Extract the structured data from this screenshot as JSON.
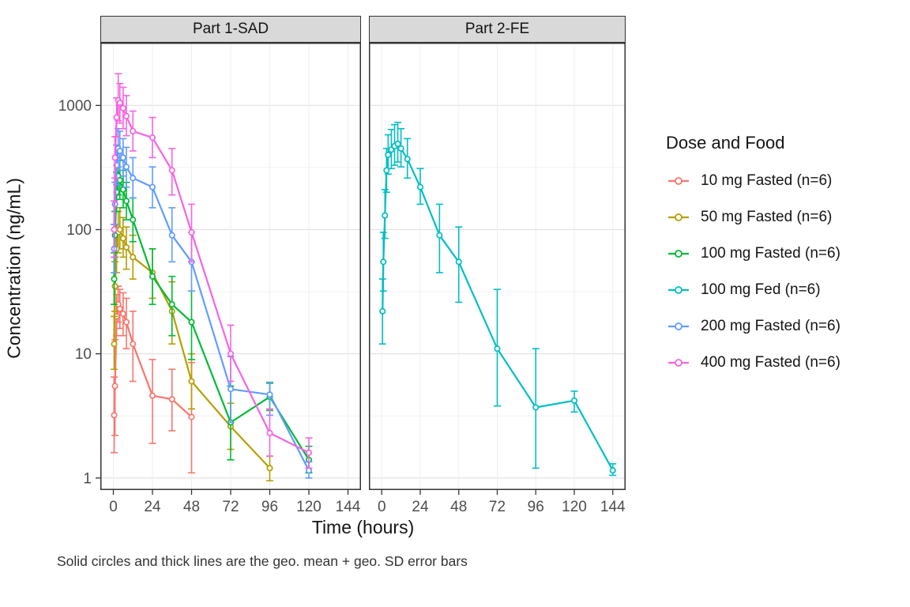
{
  "chart_data": {
    "type": "line",
    "y_scale": "log10",
    "grid": true,
    "legend_position": "right",
    "xlabel": "Time (hours)",
    "ylabel": "Concentration (ng/mL)",
    "legend_title": "Dose and Food",
    "caption": "Solid circles and thick lines are the geo. mean + geo. SD error bars",
    "x_ticks": [
      0,
      24,
      48,
      72,
      96,
      120,
      144
    ],
    "y_ticks": [
      1,
      10,
      100,
      1000
    ],
    "xlim": [
      -8,
      152
    ],
    "ylim": [
      0.8,
      3200
    ],
    "facets": [
      {
        "title": "Part 1-SAD",
        "show_y_axis": true
      },
      {
        "title": "Part 2-FE",
        "show_y_axis": false
      }
    ],
    "point_format": [
      "time_h",
      "geo_mean",
      "geo_sd_low",
      "geo_sd_high"
    ],
    "series": [
      {
        "name": "10 mg Fasted (n=6)",
        "color": "#F8766D",
        "facet": "Part 1-SAD",
        "points": [
          [
            0.5,
            3.2,
            1.6,
            6.5
          ],
          [
            1,
            5.5,
            2.2,
            13
          ],
          [
            2,
            20,
            14,
            30
          ],
          [
            3,
            25,
            18,
            35
          ],
          [
            4,
            23,
            16,
            33
          ],
          [
            6,
            21,
            14,
            31
          ],
          [
            8,
            18,
            11,
            28
          ],
          [
            12,
            12,
            6,
            22
          ],
          [
            24,
            4.6,
            1.9,
            9
          ],
          [
            36,
            4.3,
            2.4,
            7.5
          ],
          [
            48,
            3.1,
            1.1,
            8.5
          ]
        ]
      },
      {
        "name": "50 mg Fasted (n=6)",
        "color": "#B79F00",
        "facet": "Part 1-SAD",
        "points": [
          [
            0.5,
            12,
            7.5,
            20
          ],
          [
            1,
            35,
            22,
            55
          ],
          [
            2,
            70,
            45,
            110
          ],
          [
            3,
            95,
            65,
            140
          ],
          [
            4,
            100,
            70,
            150
          ],
          [
            6,
            85,
            60,
            125
          ],
          [
            8,
            72,
            48,
            105
          ],
          [
            12,
            60,
            40,
            90
          ],
          [
            24,
            45,
            28,
            70
          ],
          [
            36,
            22,
            12,
            38
          ],
          [
            48,
            6,
            3.6,
            10
          ],
          [
            72,
            2.6,
            1.7,
            4
          ],
          [
            96,
            1.2,
            0.95,
            1.5
          ]
        ]
      },
      {
        "name": "100 mg Fasted (n=6)",
        "color": "#00BA38",
        "facet": "Part 1-SAD",
        "points": [
          [
            0.5,
            40,
            25,
            65
          ],
          [
            1,
            90,
            60,
            140
          ],
          [
            2,
            200,
            140,
            290
          ],
          [
            3,
            270,
            190,
            380
          ],
          [
            4,
            250,
            175,
            360
          ],
          [
            6,
            210,
            150,
            300
          ],
          [
            8,
            170,
            120,
            240
          ],
          [
            12,
            120,
            80,
            180
          ],
          [
            24,
            42,
            25,
            70
          ],
          [
            36,
            25,
            14,
            42
          ],
          [
            48,
            18,
            9,
            32
          ],
          [
            72,
            2.8,
            1.4,
            5.5
          ],
          [
            96,
            4.5,
            3.5,
            5.8
          ],
          [
            120,
            1.4,
            1.1,
            1.8
          ]
        ]
      },
      {
        "name": "100 mg Fed (n=6)",
        "color": "#00BFC4",
        "facet": "Part 2-FE",
        "points": [
          [
            0.5,
            22,
            12,
            40
          ],
          [
            1,
            55,
            32,
            95
          ],
          [
            2,
            130,
            85,
            210
          ],
          [
            3,
            300,
            200,
            450
          ],
          [
            4,
            400,
            280,
            580
          ],
          [
            6,
            440,
            310,
            640
          ],
          [
            8,
            470,
            330,
            700
          ],
          [
            10,
            490,
            350,
            730
          ],
          [
            12,
            450,
            320,
            650
          ],
          [
            16,
            370,
            260,
            540
          ],
          [
            24,
            220,
            160,
            310
          ],
          [
            36,
            90,
            45,
            160
          ],
          [
            48,
            55,
            26,
            105
          ],
          [
            72,
            11,
            3.8,
            33
          ],
          [
            96,
            3.7,
            1.2,
            11
          ],
          [
            120,
            4.2,
            3.4,
            5.0
          ],
          [
            144,
            1.15,
            1.05,
            1.3
          ]
        ]
      },
      {
        "name": "200 mg Fasted (n=6)",
        "color": "#619CFF",
        "facet": "Part 1-SAD",
        "points": [
          [
            0.5,
            70,
            45,
            110
          ],
          [
            1,
            160,
            110,
            240
          ],
          [
            2,
            330,
            230,
            480
          ],
          [
            3,
            450,
            320,
            650
          ],
          [
            4,
            430,
            300,
            620
          ],
          [
            6,
            380,
            270,
            540
          ],
          [
            8,
            320,
            220,
            460
          ],
          [
            12,
            260,
            180,
            380
          ],
          [
            24,
            220,
            150,
            320
          ],
          [
            36,
            90,
            55,
            150
          ],
          [
            48,
            55,
            32,
            95
          ],
          [
            72,
            5.2,
            2.8,
            9.5
          ],
          [
            96,
            4.7,
            3.2,
            5.9
          ],
          [
            120,
            1.15,
            1.0,
            1.35
          ]
        ]
      },
      {
        "name": "400 mg Fasted (n=6)",
        "color": "#F564E3",
        "facet": "Part 1-SAD",
        "points": [
          [
            0.5,
            100,
            60,
            170
          ],
          [
            1,
            380,
            260,
            560
          ],
          [
            2,
            800,
            560,
            1150
          ],
          [
            3,
            1100,
            750,
            1800
          ],
          [
            4,
            1050,
            720,
            1500
          ],
          [
            6,
            950,
            650,
            1400
          ],
          [
            8,
            820,
            570,
            1200
          ],
          [
            12,
            620,
            430,
            900
          ],
          [
            24,
            550,
            380,
            800
          ],
          [
            36,
            300,
            190,
            450
          ],
          [
            48,
            95,
            55,
            160
          ],
          [
            72,
            10,
            6,
            17
          ],
          [
            96,
            2.3,
            1.5,
            3.6
          ],
          [
            120,
            1.6,
            1.2,
            2.1
          ]
        ]
      }
    ]
  }
}
